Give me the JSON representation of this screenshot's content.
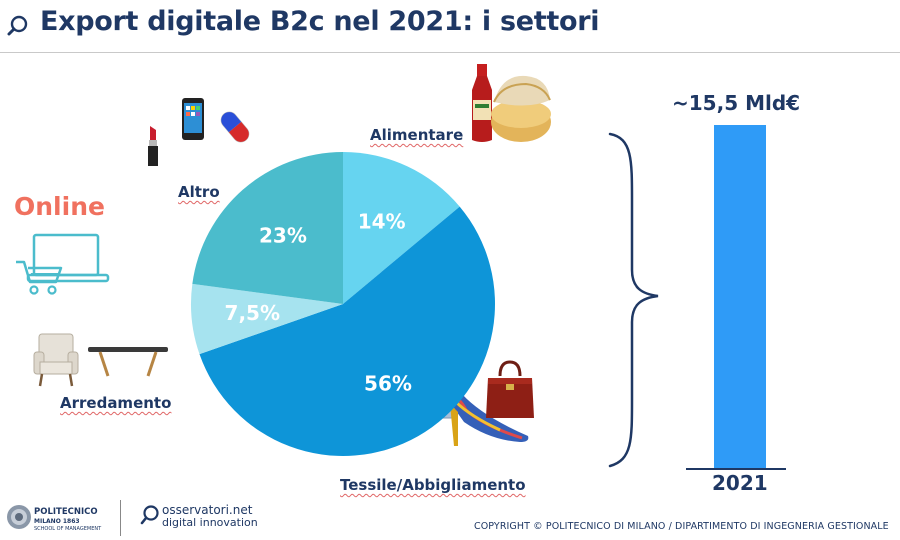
{
  "header": {
    "title": "Export digitale B2c nel 2021: i settori",
    "icon": "search-icon"
  },
  "labels": {
    "online": "Online",
    "alimentare": "Alimentare",
    "altro": "Altro",
    "arredamento": "Arredamento",
    "tessile": "Tessile/Abbigliamento"
  },
  "colors": {
    "title": "#1f3864",
    "online": "#f0715f",
    "pie_altro": "#4bbccc",
    "pie_alimentare": "#66d4f0",
    "pie_tessile": "#0e95d8",
    "pie_arredamento": "#a6e3ef",
    "bar": "#2f9bf7"
  },
  "chart_data": [
    {
      "type": "pie",
      "slices": [
        {
          "label": "Alimentare",
          "value": 14,
          "display": "14%",
          "color": "#66d4f0"
        },
        {
          "label": "Tessile/Abbigliamento",
          "value": 56,
          "display": "56%",
          "color": "#0e95d8"
        },
        {
          "label": "Arredamento",
          "value": 7.5,
          "display": "7,5%",
          "color": "#a6e3ef"
        },
        {
          "label": "Altro",
          "value": 23,
          "display": "23%",
          "color": "#4bbccc"
        }
      ]
    },
    {
      "type": "bar",
      "categories": [
        "2021"
      ],
      "values": [
        15.5
      ],
      "value_labels": [
        "~15,5 Mld€"
      ]
    }
  ],
  "footer": {
    "copyright": "COPYRIGHT © POLITECNICO DI MILANO / DIPARTIMENTO DI INGEGNERIA GESTIONALE",
    "logo1_name": "POLITECNICO",
    "logo1_sub": "MILANO 1863",
    "logo1_sub2": "SCHOOL OF MANAGEMENT",
    "logo2_name": "osservatori.net",
    "logo2_sub": "digital innovation"
  }
}
